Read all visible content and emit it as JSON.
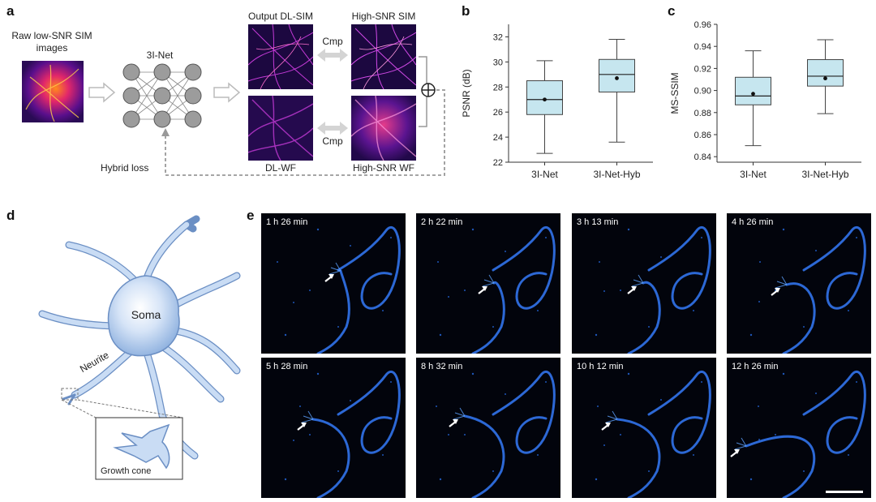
{
  "panels": {
    "a": {
      "letter": "a",
      "raw_label": "Raw low-SNR SIM images",
      "net_label": "3I-Net",
      "out_dlsim": "Output DL-SIM",
      "out_dlwf": "DL-WF",
      "hi_sim": "High-SNR SIM",
      "hi_wf": "High-SNR WF",
      "cmp1": "Cmp",
      "cmp2": "Cmp",
      "hybrid_loss": "Hybrid loss",
      "plus_symbol": "⊕"
    },
    "b": {
      "letter": "b"
    },
    "c": {
      "letter": "c"
    },
    "d": {
      "letter": "d",
      "soma": "Soma",
      "neurite": "Neurite",
      "growth_cone": "Growth cone"
    },
    "e": {
      "letter": "e",
      "times": [
        "1 h 26 min",
        "2 h 22 min",
        "3 h 13 min",
        "4 h 26 min",
        "5 h 28 min",
        "8 h 32 min",
        "10 h 12 min",
        "12 h 26 min"
      ]
    }
  },
  "chart_data": [
    {
      "type": "box",
      "panel": "b",
      "ylabel": "PSNR (dB)",
      "ylim": [
        22,
        33
      ],
      "yticks": [
        22,
        24,
        26,
        28,
        30,
        32
      ],
      "categories": [
        "3I-Net",
        "3I-Net-Hyb"
      ],
      "boxes": [
        {
          "min": 22.7,
          "q1": 25.8,
          "median": 27.0,
          "mean": 27.0,
          "q3": 28.5,
          "max": 30.1
        },
        {
          "min": 23.6,
          "q1": 27.6,
          "median": 29.0,
          "mean": 28.7,
          "q3": 30.2,
          "max": 31.8
        }
      ],
      "box_color": "#c6e6ef"
    },
    {
      "type": "box",
      "panel": "c",
      "ylabel": "MS-SSIM",
      "ylim": [
        0.835,
        0.96
      ],
      "yticks": [
        0.84,
        0.86,
        0.88,
        0.9,
        0.92,
        0.94,
        0.96
      ],
      "categories": [
        "3I-Net",
        "3I-Net-Hyb"
      ],
      "boxes": [
        {
          "min": 0.85,
          "q1": 0.887,
          "median": 0.895,
          "mean": 0.897,
          "q3": 0.912,
          "max": 0.936
        },
        {
          "min": 0.879,
          "q1": 0.904,
          "median": 0.913,
          "mean": 0.911,
          "q3": 0.928,
          "max": 0.946
        }
      ],
      "box_color": "#c6e6ef"
    }
  ]
}
